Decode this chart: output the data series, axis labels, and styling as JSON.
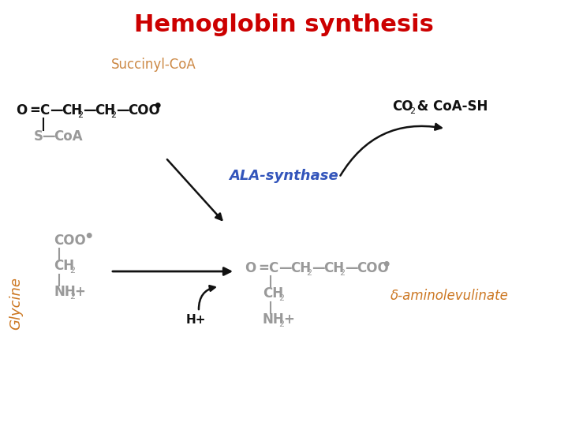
{
  "title": "Hemoglobin synthesis",
  "title_color": "#cc0000",
  "title_fontsize": 22,
  "bg_color": "#ffffff",
  "succinyl_label": "Succinyl-CoA",
  "succinyl_color": "#cc8844",
  "glycine_label": "Glycine",
  "glycine_color": "#cc7722",
  "ala_synthase_label": "ALA-synthase",
  "ala_synthase_color": "#3355bb",
  "delta_amino_label": "δ-aminolevulinate",
  "delta_amino_color": "#cc7722",
  "co2_color": "#222222",
  "struct_color": "#111111",
  "gray_color": "#999999"
}
